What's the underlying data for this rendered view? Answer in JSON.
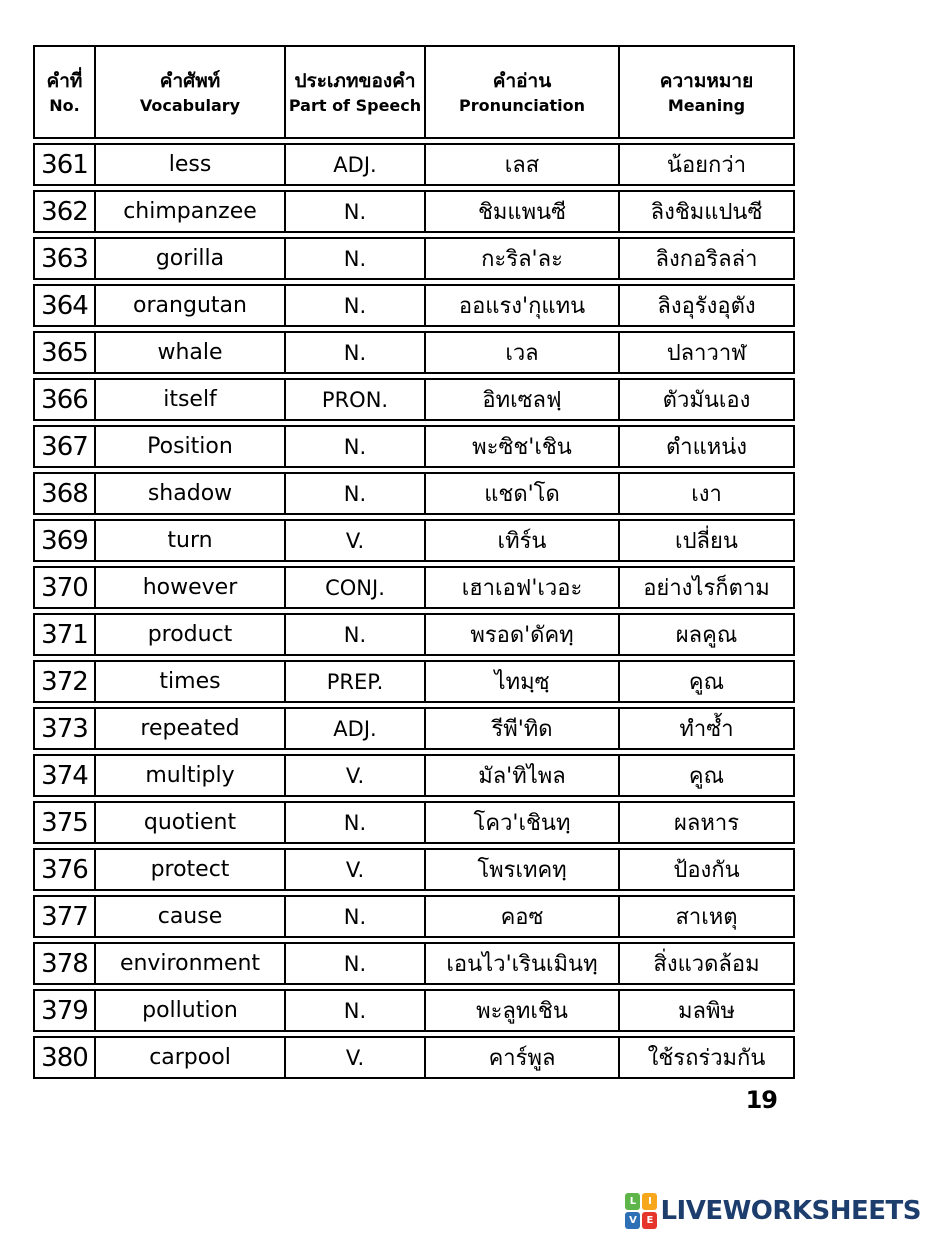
{
  "page": {
    "number": "19"
  },
  "table": {
    "border_color": "#000000",
    "headers": [
      {
        "thai": "คำที่",
        "english": "No."
      },
      {
        "thai": "คำศัพท์",
        "english": "Vocabulary"
      },
      {
        "thai": "ประเภทของคำ",
        "english": "Part of Speech"
      },
      {
        "thai": "คำอ่าน",
        "english": "Pronunciation"
      },
      {
        "thai": "ความหมาย",
        "english": "Meaning"
      }
    ],
    "rows": [
      {
        "no": "361",
        "vocabulary": "less",
        "part_of_speech": "ADJ.",
        "pronunciation": "เลส",
        "meaning": "น้อยกว่า"
      },
      {
        "no": "362",
        "vocabulary": "chimpanzee",
        "part_of_speech": "N.",
        "pronunciation": "ชิมแพนซี",
        "meaning": "ลิงชิมแปนซี"
      },
      {
        "no": "363",
        "vocabulary": "gorilla",
        "part_of_speech": "N.",
        "pronunciation": "กะริล'ละ",
        "meaning": "ลิงกอริลล่า"
      },
      {
        "no": "364",
        "vocabulary": "orangutan",
        "part_of_speech": "N.",
        "pronunciation": "ออแรง'กุแทน",
        "meaning": "ลิงอุรังอุตัง"
      },
      {
        "no": "365",
        "vocabulary": "whale",
        "part_of_speech": "N.",
        "pronunciation": "เวล",
        "meaning": "ปลาวาฬ"
      },
      {
        "no": "366",
        "vocabulary": "itself",
        "part_of_speech": "PRON.",
        "pronunciation": "อิทเซลฟฺ",
        "meaning": "ตัวมันเอง"
      },
      {
        "no": "367",
        "vocabulary": "Position",
        "part_of_speech": "N.",
        "pronunciation": "พะซิช'เชิน",
        "meaning": "ตำแหน่ง"
      },
      {
        "no": "368",
        "vocabulary": "shadow",
        "part_of_speech": "N.",
        "pronunciation": "แชด'โด",
        "meaning": "เงา"
      },
      {
        "no": "369",
        "vocabulary": "turn",
        "part_of_speech": "V.",
        "pronunciation": "เทิร์น",
        "meaning": "เปลี่ยน"
      },
      {
        "no": "370",
        "vocabulary": "however",
        "part_of_speech": "CONJ.",
        "pronunciation": "เฮาเอฟ'เวอะ",
        "meaning": "อย่างไรก็ตาม"
      },
      {
        "no": "371",
        "vocabulary": "product",
        "part_of_speech": "N.",
        "pronunciation": "พรอด'ดัคทฺ",
        "meaning": "ผลคูณ"
      },
      {
        "no": "372",
        "vocabulary": "times",
        "part_of_speech": "PREP.",
        "pronunciation": "ไทมฺซฺ",
        "meaning": "คูณ"
      },
      {
        "no": "373",
        "vocabulary": "repeated",
        "part_of_speech": "ADJ.",
        "pronunciation": "รีพี'ทิด",
        "meaning": "ทำซ้ำ"
      },
      {
        "no": "374",
        "vocabulary": "multiply",
        "part_of_speech": "V.",
        "pronunciation": "มัล'ทิไพล",
        "meaning": "คูณ"
      },
      {
        "no": "375",
        "vocabulary": "quotient",
        "part_of_speech": "N.",
        "pronunciation": "โคว'เชินทฺ",
        "meaning": "ผลหาร"
      },
      {
        "no": "376",
        "vocabulary": "protect",
        "part_of_speech": "V.",
        "pronunciation": "โพรเทคทฺ",
        "meaning": "ป้องกัน"
      },
      {
        "no": "377",
        "vocabulary": "cause",
        "part_of_speech": "N.",
        "pronunciation": "คอซ",
        "meaning": "สาเหตุ"
      },
      {
        "no": "378",
        "vocabulary": "environment",
        "part_of_speech": "N.",
        "pronunciation": "เอนไว'เรินเมินทฺ",
        "meaning": "สิ่งแวดล้อม"
      },
      {
        "no": "379",
        "vocabulary": "pollution",
        "part_of_speech": "N.",
        "pronunciation": "พะลูทเชิน",
        "meaning": "มลพิษ"
      },
      {
        "no": "380",
        "vocabulary": "carpool",
        "part_of_speech": "V.",
        "pronunciation": "คาร์พูล",
        "meaning": "ใช้รถร่วมกัน"
      }
    ]
  },
  "footer": {
    "logo": {
      "tiles": [
        {
          "letter": "L",
          "color": "#5eb64a"
        },
        {
          "letter": "I",
          "color": "#f7a71c"
        },
        {
          "letter": "V",
          "color": "#2d70b5"
        },
        {
          "letter": "E",
          "color": "#e6352b"
        }
      ],
      "brand": "LIVEWORKSHEETS",
      "brand_color": "#1d3d6d"
    }
  }
}
